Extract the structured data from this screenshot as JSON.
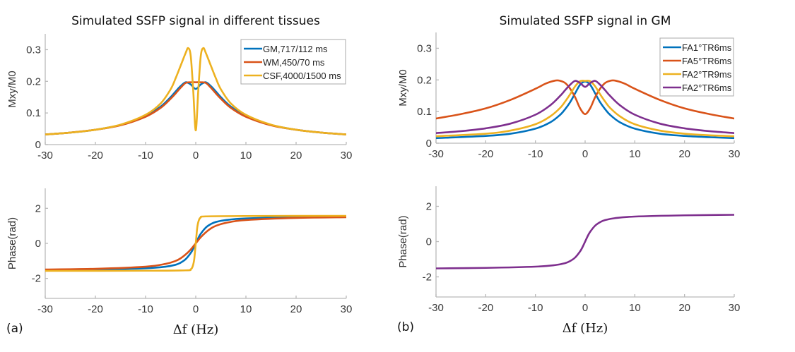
{
  "chart_data": [
    {
      "id": "a-magnitude",
      "type": "line",
      "title": "Simulated SSFP signal in different tissues",
      "xlabel": "",
      "ylabel": "Mxy/M0",
      "xlim": [
        -30,
        30
      ],
      "ylim": [
        0,
        0.35
      ],
      "xticks": [
        -30,
        -20,
        -10,
        0,
        10,
        20,
        30
      ],
      "xtick_labels": [
        "-30",
        "-20",
        "-10",
        "0",
        "10",
        "20",
        "30"
      ],
      "yticks": [
        0,
        0.1,
        0.2,
        0.3
      ],
      "ytick_labels": [
        "0",
        "0.1",
        "0.2",
        "0.3"
      ],
      "legend": "top-right",
      "series": [
        {
          "name": "GM,717/112 ms",
          "color": "#0072BD",
          "x": [
            -30,
            -25,
            -20,
            -15,
            -10,
            -7,
            -5,
            -4,
            -3,
            -2,
            -1,
            0,
            1,
            2,
            3,
            4,
            5,
            7,
            10,
            15,
            20,
            25,
            30
          ],
          "y": [
            0.032,
            0.038,
            0.047,
            0.062,
            0.09,
            0.12,
            0.15,
            0.168,
            0.185,
            0.197,
            0.19,
            0.176,
            0.19,
            0.197,
            0.185,
            0.168,
            0.15,
            0.12,
            0.09,
            0.062,
            0.047,
            0.038,
            0.032
          ]
        },
        {
          "name": "WM,450/70 ms",
          "color": "#D95319",
          "x": [
            -30,
            -25,
            -20,
            -15,
            -10,
            -7,
            -5,
            -4,
            -3,
            -2,
            -1,
            0,
            1,
            2,
            3,
            4,
            5,
            7,
            10,
            15,
            20,
            25,
            30
          ],
          "y": [
            0.032,
            0.038,
            0.047,
            0.061,
            0.088,
            0.116,
            0.145,
            0.162,
            0.18,
            0.195,
            0.197,
            0.197,
            0.197,
            0.195,
            0.18,
            0.162,
            0.145,
            0.116,
            0.088,
            0.061,
            0.047,
            0.038,
            0.032
          ]
        },
        {
          "name": "CSF,4000/1500 ms",
          "color": "#EDB120",
          "x": [
            -30,
            -25,
            -20,
            -15,
            -10,
            -7,
            -5,
            -4,
            -3,
            -2,
            -1.5,
            -1,
            -0.5,
            0,
            0.5,
            1,
            1.5,
            2,
            3,
            4,
            5,
            7,
            10,
            15,
            20,
            25,
            30
          ],
          "y": [
            0.032,
            0.038,
            0.047,
            0.063,
            0.094,
            0.13,
            0.175,
            0.21,
            0.25,
            0.29,
            0.305,
            0.28,
            0.17,
            0.045,
            0.17,
            0.28,
            0.305,
            0.29,
            0.25,
            0.21,
            0.175,
            0.13,
            0.094,
            0.063,
            0.047,
            0.038,
            0.032
          ]
        }
      ]
    },
    {
      "id": "a-phase",
      "type": "line",
      "title": "",
      "xlabel": "Δf (Hz)",
      "ylabel": "Phase(rad)",
      "xlim": [
        -30,
        30
      ],
      "ylim": [
        -3.14,
        3.14
      ],
      "xticks": [
        -30,
        -20,
        -10,
        0,
        10,
        20,
        30
      ],
      "xtick_labels": [
        "-30",
        "-20",
        "-10",
        "0",
        "10",
        "20",
        "30"
      ],
      "yticks": [
        -2,
        0,
        2
      ],
      "ytick_labels": [
        "-2",
        "0",
        "2"
      ],
      "panel_label": "(a)",
      "series": [
        {
          "name": "GM,717/112 ms",
          "color": "#0072BD",
          "x": [
            -30,
            -20,
            -10,
            -6,
            -4,
            -3,
            -2,
            -1,
            -0.5,
            0,
            0.5,
            1,
            2,
            3,
            4,
            6,
            10,
            20,
            30
          ],
          "y": [
            -1.52,
            -1.49,
            -1.42,
            -1.33,
            -1.22,
            -1.1,
            -0.9,
            -0.55,
            -0.3,
            0,
            0.3,
            0.55,
            0.9,
            1.1,
            1.22,
            1.33,
            1.42,
            1.49,
            1.52
          ]
        },
        {
          "name": "WM,450/70 ms",
          "color": "#D95319",
          "x": [
            -30,
            -20,
            -10,
            -6,
            -4,
            -3,
            -2,
            -1,
            0,
            1,
            2,
            3,
            4,
            6,
            10,
            20,
            30
          ],
          "y": [
            -1.49,
            -1.45,
            -1.33,
            -1.17,
            -1.0,
            -0.85,
            -0.63,
            -0.35,
            0,
            0.35,
            0.63,
            0.85,
            1.0,
            1.17,
            1.33,
            1.45,
            1.49
          ]
        },
        {
          "name": "CSF,4000/1500 ms",
          "color": "#EDB120",
          "x": [
            -30,
            -10,
            -2,
            -1,
            -0.6,
            -0.3,
            0,
            0.3,
            0.6,
            1,
            2,
            10,
            30
          ],
          "y": [
            -1.57,
            -1.56,
            -1.54,
            -1.48,
            -1.3,
            -0.9,
            0,
            0.9,
            1.3,
            1.48,
            1.54,
            1.56,
            1.57
          ]
        }
      ]
    },
    {
      "id": "b-magnitude",
      "type": "line",
      "title": "Simulated SSFP signal in GM",
      "xlabel": "",
      "ylabel": "Mxy/M0",
      "xlim": [
        -30,
        30
      ],
      "ylim": [
        0,
        0.35
      ],
      "xticks": [
        -30,
        -20,
        -10,
        0,
        10,
        20,
        30
      ],
      "xtick_labels": [
        "-30",
        "-20",
        "-10",
        "0",
        "10",
        "20",
        "30"
      ],
      "yticks": [
        0,
        0.1,
        0.2,
        0.3
      ],
      "ytick_labels": [
        "0",
        "0.1",
        "0.2",
        "0.3"
      ],
      "legend": "top-right",
      "series": [
        {
          "name": "FA1°TR6ms",
          "color": "#0072BD",
          "x": [
            -30,
            -20,
            -15,
            -10,
            -7,
            -5,
            -4,
            -3,
            -2,
            -1,
            0,
            1,
            2,
            3,
            4,
            5,
            7,
            10,
            15,
            20,
            25,
            30
          ],
          "y": [
            0.016,
            0.023,
            0.03,
            0.046,
            0.066,
            0.09,
            0.108,
            0.13,
            0.158,
            0.185,
            0.195,
            0.185,
            0.158,
            0.13,
            0.108,
            0.09,
            0.066,
            0.046,
            0.03,
            0.023,
            0.019,
            0.016
          ]
        },
        {
          "name": "FA5°TR6ms",
          "color": "#D95319",
          "x": [
            -30,
            -25,
            -20,
            -15,
            -10,
            -8,
            -6,
            -5,
            -4,
            -3,
            -2,
            -1,
            0,
            1,
            2,
            3,
            4,
            5,
            6,
            8,
            10,
            15,
            20,
            25,
            30
          ],
          "y": [
            0.078,
            0.092,
            0.11,
            0.137,
            0.172,
            0.188,
            0.198,
            0.197,
            0.19,
            0.172,
            0.145,
            0.11,
            0.092,
            0.11,
            0.145,
            0.172,
            0.19,
            0.197,
            0.198,
            0.188,
            0.172,
            0.137,
            0.11,
            0.092,
            0.078
          ]
        },
        {
          "name": "FA2°TR9ms",
          "color": "#EDB120",
          "x": [
            -30,
            -20,
            -15,
            -10,
            -7,
            -5,
            -4,
            -3,
            -2,
            -1,
            0,
            1,
            2,
            3,
            4,
            5,
            7,
            10,
            15,
            20,
            25,
            30
          ],
          "y": [
            0.022,
            0.03,
            0.04,
            0.06,
            0.085,
            0.112,
            0.132,
            0.155,
            0.18,
            0.196,
            0.197,
            0.196,
            0.18,
            0.155,
            0.132,
            0.112,
            0.085,
            0.06,
            0.04,
            0.03,
            0.025,
            0.022
          ]
        },
        {
          "name": "FA2°TR6ms",
          "color": "#7E2F8E",
          "x": [
            -30,
            -25,
            -20,
            -15,
            -10,
            -7,
            -5,
            -4,
            -3,
            -2,
            -1,
            0,
            1,
            2,
            3,
            4,
            5,
            7,
            10,
            15,
            20,
            25,
            30
          ],
          "y": [
            0.032,
            0.038,
            0.047,
            0.062,
            0.09,
            0.12,
            0.15,
            0.168,
            0.185,
            0.197,
            0.19,
            0.178,
            0.19,
            0.197,
            0.185,
            0.168,
            0.15,
            0.12,
            0.09,
            0.062,
            0.047,
            0.038,
            0.032
          ]
        }
      ]
    },
    {
      "id": "b-phase",
      "type": "line",
      "title": "",
      "xlabel": "Δf (Hz)",
      "ylabel": "Phase(rad)",
      "xlim": [
        -30,
        30
      ],
      "ylim": [
        -3.14,
        3.14
      ],
      "xticks": [
        -30,
        -20,
        -10,
        0,
        10,
        20,
        30
      ],
      "xtick_labels": [
        "-30",
        "-20",
        "-10",
        "0",
        "10",
        "20",
        "30"
      ],
      "yticks": [
        -2,
        0,
        2
      ],
      "ytick_labels": [
        "-2",
        "0",
        "2"
      ],
      "panel_label": "(b)",
      "series": [
        {
          "name": "FA2°TR6ms",
          "color": "#7E2F8E",
          "x": [
            -30,
            -20,
            -10,
            -6,
            -4,
            -3,
            -2,
            -1,
            -0.5,
            0,
            0.5,
            1,
            2,
            3,
            4,
            6,
            10,
            20,
            30
          ],
          "y": [
            -1.52,
            -1.49,
            -1.42,
            -1.33,
            -1.22,
            -1.1,
            -0.9,
            -0.55,
            -0.3,
            0,
            0.3,
            0.55,
            0.9,
            1.1,
            1.22,
            1.33,
            1.42,
            1.49,
            1.52
          ]
        }
      ]
    }
  ]
}
